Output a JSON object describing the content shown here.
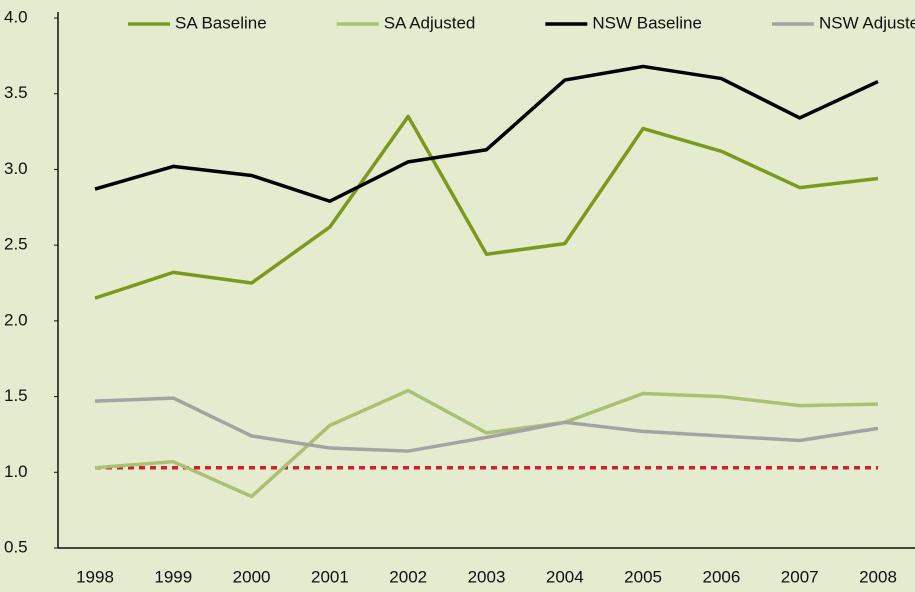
{
  "chart_data": {
    "type": "line",
    "x": [
      1998,
      1999,
      2000,
      2001,
      2002,
      2003,
      2004,
      2005,
      2006,
      2007,
      2008
    ],
    "xticks": [
      1998,
      1999,
      2000,
      2001,
      2002,
      2003,
      2004,
      2005,
      2006,
      2007,
      2008
    ],
    "xlim": [
      1998,
      2008
    ],
    "ylim": [
      0.5,
      4.0
    ],
    "yticks": [
      0.5,
      {
        "value": 1.0,
        "label": "1.0"
      },
      1.5,
      {
        "value": 2.0,
        "label": "2.0"
      },
      2.5,
      {
        "value": 3.0,
        "label": "3.0"
      },
      3.5,
      {
        "value": 4.0,
        "label": "4.0"
      }
    ],
    "series": [
      {
        "name": "SA Baseline",
        "color": "#7a9a1e",
        "values": [
          2.15,
          2.32,
          2.25,
          2.62,
          3.35,
          2.44,
          2.51,
          3.27,
          3.12,
          2.88,
          2.94
        ]
      },
      {
        "name": "SA Adjusted",
        "color": "#a9c173",
        "values": [
          1.03,
          1.07,
          0.84,
          1.31,
          1.54,
          1.26,
          1.33,
          1.52,
          1.5,
          1.44,
          1.45
        ]
      },
      {
        "name": "NSW Baseline",
        "color": "#000000",
        "values": [
          2.87,
          3.02,
          2.96,
          2.79,
          3.05,
          3.13,
          3.59,
          3.68,
          3.6,
          3.34,
          3.58
        ]
      },
      {
        "name": "NSW Adjusted",
        "color": "#a3a3a3",
        "values": [
          1.47,
          1.49,
          1.24,
          1.16,
          1.14,
          1.23,
          1.33,
          1.27,
          1.24,
          1.21,
          1.29
        ]
      }
    ],
    "reference_line": {
      "value": 1.03,
      "color": "#d0202a"
    },
    "legend": "top"
  }
}
